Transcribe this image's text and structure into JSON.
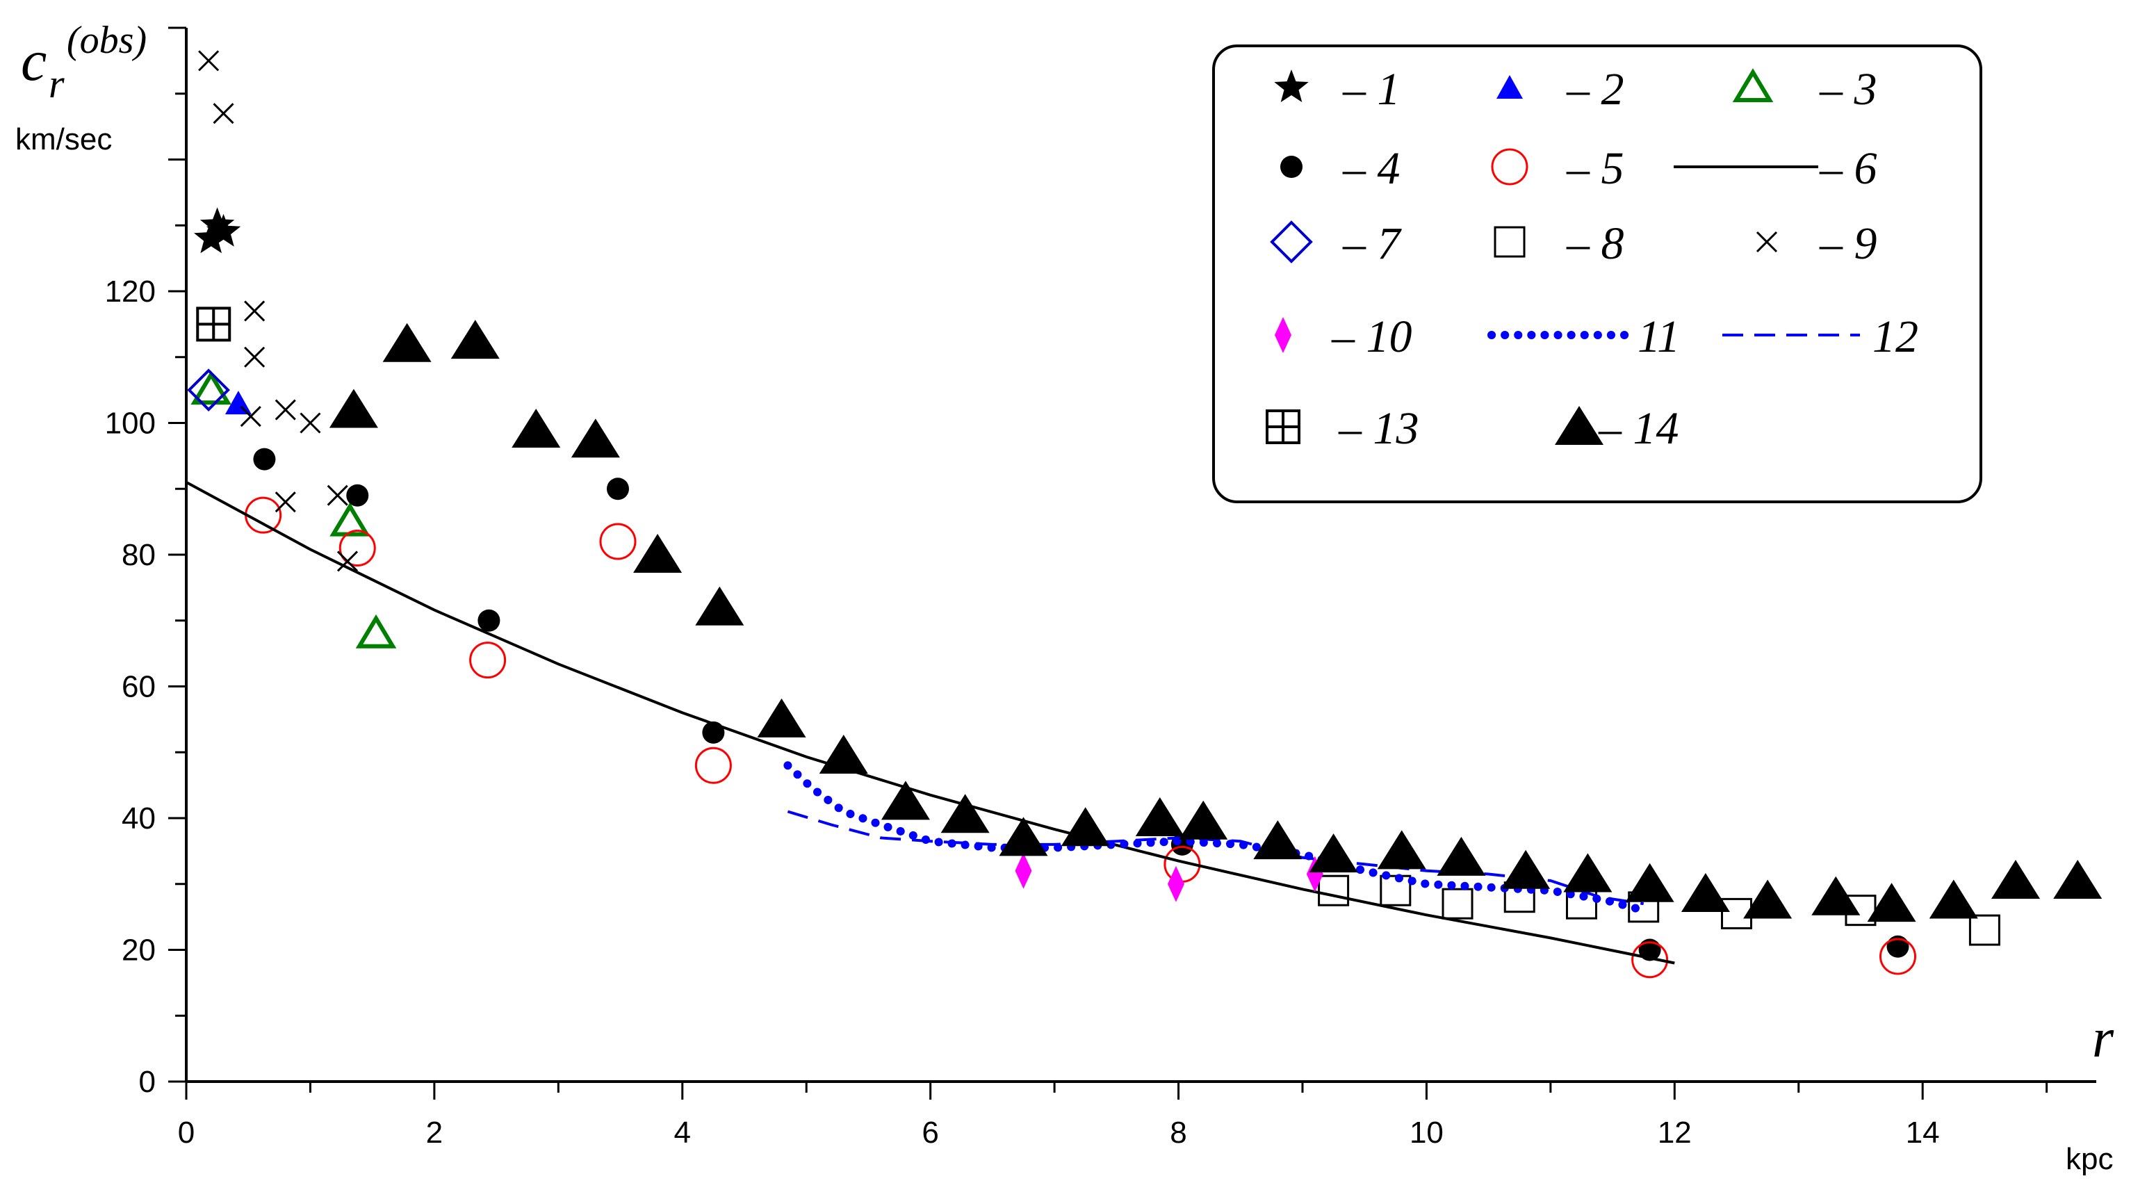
{
  "chart_data": {
    "type": "scatter",
    "title": "",
    "ylabel": {
      "symbol": "c",
      "subscript": "r",
      "superscript": "(obs)",
      "unit": "km/sec"
    },
    "xlabel": {
      "symbol": "r",
      "unit": "kpc"
    },
    "xlim": [
      0,
      15.4
    ],
    "ylim": [
      0,
      160
    ],
    "xticks": [
      0,
      2,
      4,
      6,
      8,
      10,
      12,
      14
    ],
    "yticks": [
      0,
      20,
      40,
      60,
      80,
      100,
      120
    ],
    "grid": false,
    "legend_position": "top-right",
    "series": [
      {
        "name": "– 1",
        "marker": "star",
        "color": "#000000",
        "points": [
          [
            0.2,
            128
          ],
          [
            0.25,
            130
          ],
          [
            0.3,
            129
          ]
        ]
      },
      {
        "name": "– 2",
        "marker": "triangle-filled",
        "color": "#0000ff",
        "points": [
          [
            0.42,
            103
          ]
        ]
      },
      {
        "name": "– 3",
        "marker": "triangle-open",
        "color": "#008000",
        "points": [
          [
            0.2,
            105
          ],
          [
            1.32,
            85
          ],
          [
            1.53,
            68
          ]
        ]
      },
      {
        "name": "– 4",
        "marker": "circle-filled",
        "color": "#000000",
        "points": [
          [
            0.63,
            94.5
          ],
          [
            1.38,
            89
          ],
          [
            2.44,
            70
          ],
          [
            3.48,
            90
          ],
          [
            4.25,
            53
          ],
          [
            8.03,
            36
          ],
          [
            11.8,
            20
          ],
          [
            13.8,
            20.5
          ]
        ]
      },
      {
        "name": "– 5",
        "marker": "circle-open",
        "color": "#ff0000",
        "points": [
          [
            0.62,
            86
          ],
          [
            1.38,
            81
          ],
          [
            2.43,
            64
          ],
          [
            3.48,
            82
          ],
          [
            4.25,
            48
          ],
          [
            8.03,
            33
          ],
          [
            11.8,
            18.5
          ],
          [
            13.8,
            19
          ]
        ]
      },
      {
        "name": "– 6",
        "marker": "line-solid",
        "color": "#000000",
        "points": [
          [
            0,
            91
          ],
          [
            1,
            80.8
          ],
          [
            2,
            71.6
          ],
          [
            3,
            63.4
          ],
          [
            4,
            56
          ],
          [
            5,
            49.3
          ],
          [
            6,
            43.5
          ],
          [
            7,
            38.3
          ],
          [
            8,
            33.5
          ],
          [
            9,
            29.2
          ],
          [
            10,
            25.3
          ],
          [
            11,
            21.8
          ],
          [
            12,
            18
          ]
        ]
      },
      {
        "name": "– 7",
        "marker": "diamond-open",
        "color": "#0000cc",
        "points": [
          [
            0.18,
            105
          ]
        ]
      },
      {
        "name": "– 8",
        "marker": "square-open",
        "color": "#000000",
        "points": [
          [
            9.25,
            29
          ],
          [
            9.75,
            29
          ],
          [
            10.25,
            27
          ],
          [
            10.75,
            28
          ],
          [
            11.25,
            27
          ],
          [
            11.75,
            26.5
          ],
          [
            12.5,
            25.5
          ],
          [
            13.5,
            26
          ],
          [
            14.5,
            23
          ]
        ]
      },
      {
        "name": "– 9",
        "marker": "cross",
        "color": "#000000",
        "points": [
          [
            0.18,
            155
          ],
          [
            0.3,
            147
          ],
          [
            0.55,
            117
          ],
          [
            0.55,
            110
          ],
          [
            0.52,
            101
          ],
          [
            0.8,
            102
          ],
          [
            1.0,
            100
          ],
          [
            0.8,
            88
          ],
          [
            1.22,
            89
          ],
          [
            1.3,
            79
          ]
        ]
      },
      {
        "name": "– 10",
        "marker": "thin-diamond",
        "color": "#ff00ff",
        "points": [
          [
            6.75,
            32
          ],
          [
            7.98,
            30
          ],
          [
            9.1,
            31.5
          ]
        ]
      },
      {
        "name": "11",
        "marker": "line-dotted",
        "color": "#0000ff",
        "points": [
          [
            4.85,
            48
          ],
          [
            5.05,
            44.5
          ],
          [
            5.3,
            41
          ],
          [
            5.6,
            39
          ],
          [
            6.0,
            36.5
          ],
          [
            6.5,
            35.5
          ],
          [
            7.0,
            35.5
          ],
          [
            7.5,
            36
          ],
          [
            8.0,
            36.5
          ],
          [
            8.5,
            36
          ],
          [
            9.0,
            34.5
          ],
          [
            9.5,
            32
          ],
          [
            10.0,
            30
          ],
          [
            10.5,
            29.5
          ],
          [
            11.0,
            29
          ],
          [
            11.45,
            27.5
          ],
          [
            11.75,
            26
          ]
        ]
      },
      {
        "name": "12",
        "marker": "line-dashed",
        "color": "#0000ff",
        "points": [
          [
            4.85,
            41
          ],
          [
            5.2,
            39
          ],
          [
            5.6,
            37
          ],
          [
            6.0,
            36.5
          ],
          [
            6.5,
            36
          ],
          [
            7.0,
            36
          ],
          [
            7.5,
            36.5
          ],
          [
            8.0,
            37
          ],
          [
            8.5,
            36.5
          ],
          [
            9.0,
            34
          ],
          [
            9.5,
            33
          ],
          [
            10.0,
            32
          ],
          [
            10.5,
            31.5
          ],
          [
            11.0,
            30.5
          ],
          [
            11.4,
            28
          ],
          [
            11.75,
            27
          ]
        ]
      },
      {
        "name": "– 13",
        "marker": "square-cross",
        "color": "#000000",
        "points": [
          [
            0.22,
            115
          ]
        ]
      },
      {
        "name": "– 14",
        "marker": "triangle-big",
        "color": "#000000",
        "points": [
          [
            1.35,
            102
          ],
          [
            1.78,
            112
          ],
          [
            2.33,
            112.5
          ],
          [
            2.82,
            99
          ],
          [
            3.3,
            97.5
          ],
          [
            3.8,
            80
          ],
          [
            4.3,
            72
          ],
          [
            4.8,
            55
          ],
          [
            5.3,
            49.5
          ],
          [
            5.8,
            42.5
          ],
          [
            6.28,
            40.5
          ],
          [
            6.75,
            37
          ],
          [
            7.25,
            38.5
          ],
          [
            7.85,
            40
          ],
          [
            8.2,
            39.5
          ],
          [
            8.8,
            36.5
          ],
          [
            9.25,
            34.5
          ],
          [
            9.8,
            35
          ],
          [
            10.28,
            34
          ],
          [
            10.8,
            32
          ],
          [
            11.3,
            31.5
          ],
          [
            11.8,
            30
          ],
          [
            12.25,
            28.5
          ],
          [
            12.75,
            27.5
          ],
          [
            13.3,
            28
          ],
          [
            13.75,
            27
          ],
          [
            14.25,
            27.5
          ],
          [
            14.75,
            30.5
          ],
          [
            15.25,
            30.5
          ]
        ]
      }
    ]
  }
}
